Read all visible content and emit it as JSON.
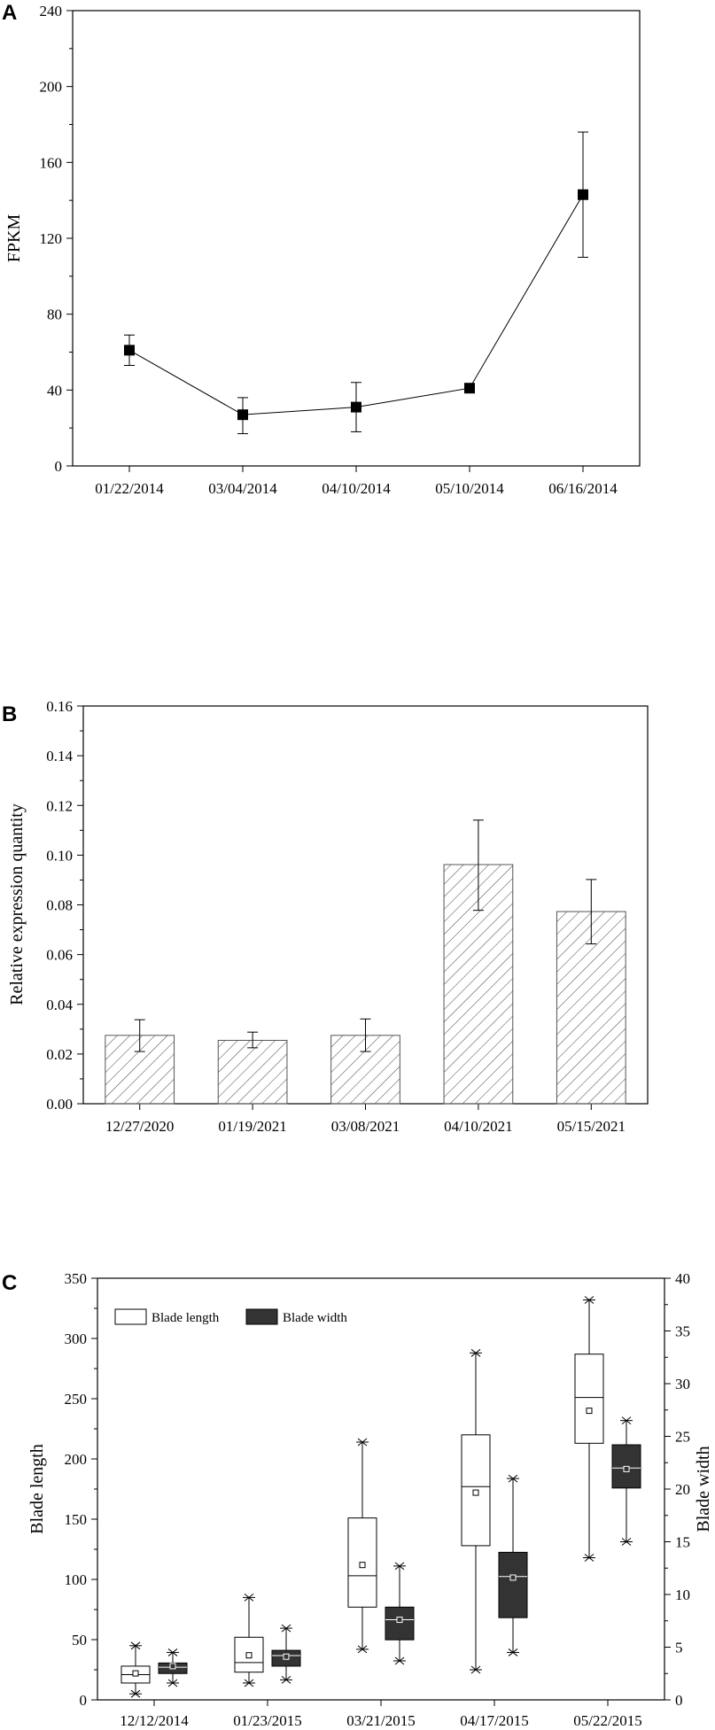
{
  "chart_data": [
    {
      "panel": "A",
      "type": "line",
      "ylabel": "FPKM",
      "ylim": [
        0,
        240
      ],
      "yticks": [
        0,
        40,
        80,
        120,
        160,
        200,
        240
      ],
      "categories": [
        "01/22/2014",
        "03/04/2014",
        "04/10/2014",
        "05/10/2014",
        "06/16/2014"
      ],
      "values": [
        61,
        27,
        31,
        41,
        143
      ],
      "err_low": [
        53,
        17,
        18,
        41,
        110
      ],
      "err_high": [
        69,
        36,
        44,
        41,
        176
      ],
      "marker": "square",
      "color": "#000000"
    },
    {
      "panel": "B",
      "type": "bar",
      "ylabel": "Relative expression quantity",
      "ylim": [
        0,
        0.16
      ],
      "yticks": [
        "0.00",
        "0.02",
        "0.04",
        "0.06",
        "0.08",
        "0.10",
        "0.12",
        "0.14",
        "0.16"
      ],
      "categories": [
        "12/27/2020",
        "01/19/2021",
        "03/08/2021",
        "04/10/2021",
        "05/15/2021"
      ],
      "values": [
        0.0275,
        0.0255,
        0.0275,
        0.0962,
        0.0773
      ],
      "err_low": [
        0.021,
        0.0225,
        0.021,
        0.0778,
        0.0643
      ],
      "err_high": [
        0.0338,
        0.0288,
        0.0341,
        0.1141,
        0.0902
      ],
      "fill": "hatched",
      "color": "#555555"
    },
    {
      "panel": "C",
      "type": "box",
      "ylabel": "Blade length",
      "y2label": "Blade width",
      "ylim": [
        0,
        350
      ],
      "y2lim": [
        0,
        40
      ],
      "yticks": [
        0,
        50,
        100,
        150,
        200,
        250,
        300,
        350
      ],
      "y2ticks": [
        0,
        5,
        10,
        15,
        20,
        25,
        30,
        35,
        40
      ],
      "categories": [
        "12/12/2014",
        "01/23/2015",
        "03/21/2015",
        "04/17/2015",
        "05/22/2015"
      ],
      "legend": [
        "Blade length",
        "Blade width"
      ],
      "legend_position": "top-left",
      "series": [
        {
          "name": "Blade length",
          "axis": "left",
          "fill": "#ffffff",
          "boxes": [
            {
              "min": 5,
              "q1": 14,
              "median": 21,
              "q3": 28,
              "max": 45,
              "mean": 22
            },
            {
              "min": 14,
              "q1": 23,
              "median": 31,
              "q3": 52,
              "max": 85,
              "mean": 37
            },
            {
              "min": 42,
              "q1": 77,
              "median": 103,
              "q3": 151,
              "max": 214,
              "mean": 112
            },
            {
              "min": 25,
              "q1": 128,
              "median": 177,
              "q3": 220,
              "max": 288,
              "mean": 172
            },
            {
              "min": 118,
              "q1": 213,
              "median": 251,
              "q3": 287,
              "max": 332,
              "mean": 240
            }
          ]
        },
        {
          "name": "Blade width",
          "axis": "right",
          "fill": "#333333",
          "boxes": [
            {
              "min": 1.6,
              "q1": 2.5,
              "median": 3.1,
              "q3": 3.5,
              "max": 4.5,
              "mean": 3.2
            },
            {
              "min": 1.9,
              "q1": 3.2,
              "median": 4.2,
              "q3": 4.7,
              "max": 6.8,
              "mean": 4.1
            },
            {
              "min": 3.7,
              "q1": 5.7,
              "median": 7.6,
              "q3": 8.8,
              "max": 12.7,
              "mean": 7.6
            },
            {
              "min": 4.5,
              "q1": 7.8,
              "median": 11.7,
              "q3": 14.0,
              "max": 21.0,
              "mean": 11.6
            },
            {
              "min": 15.0,
              "q1": 20.1,
              "median": 22.0,
              "q3": 24.2,
              "max": 26.5,
              "mean": 21.9
            }
          ]
        }
      ]
    }
  ]
}
